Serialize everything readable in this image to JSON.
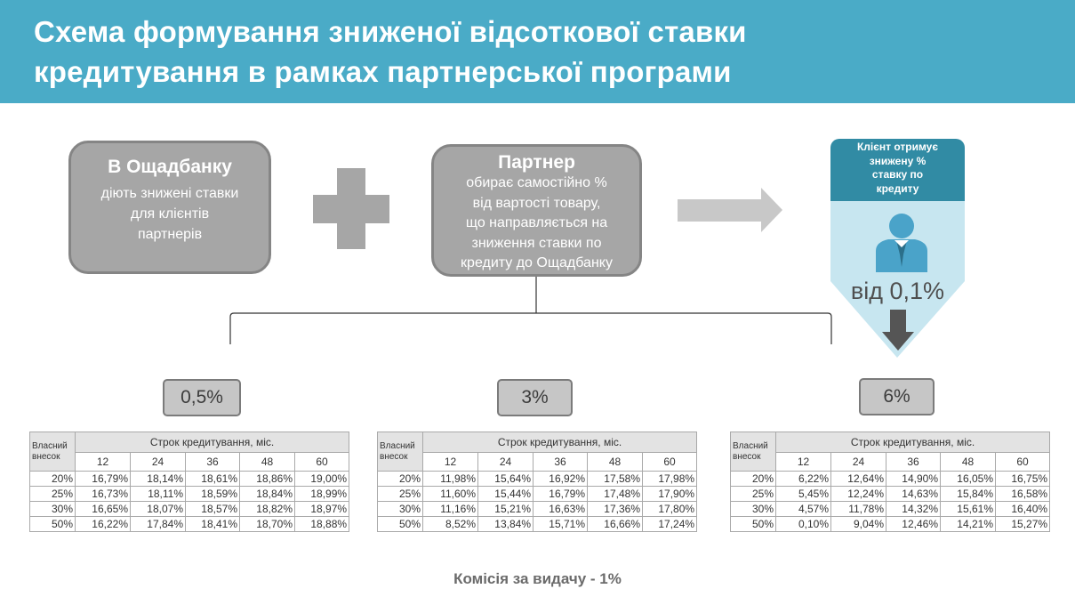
{
  "header": {
    "title_line1": "Схема формування зниженої відсоткової ставки",
    "title_line2": "кредитування в рамках партнерської програми"
  },
  "bank_box": {
    "title": "В Ощадбанку",
    "lines": [
      "діють знижені ставки",
      "для клієнтів",
      "партнерів"
    ]
  },
  "partner_box": {
    "title": "Партнер",
    "lines": [
      "обирає самостійно %",
      "від вартості товару,",
      "що направляється на",
      "зниження ставки по",
      "кредиту до Ощадбанку"
    ]
  },
  "client": {
    "lines": [
      "Клієнт отримує",
      "знижену %",
      "ставку по",
      "кредиту"
    ],
    "rate": "від 0,1%"
  },
  "options": [
    {
      "rate": "0,5%",
      "table": {
        "owner_label_1": "Власний",
        "owner_label_2": "внесок",
        "term_header": "Строк кредитування, міс.",
        "terms": [
          "12",
          "24",
          "36",
          "48",
          "60"
        ],
        "rows": [
          {
            "down": "20%",
            "values": [
              "16,79%",
              "18,14%",
              "18,61%",
              "18,86%",
              "19,00%"
            ]
          },
          {
            "down": "25%",
            "values": [
              "16,73%",
              "18,11%",
              "18,59%",
              "18,84%",
              "18,99%"
            ]
          },
          {
            "down": "30%",
            "values": [
              "16,65%",
              "18,07%",
              "18,57%",
              "18,82%",
              "18,97%"
            ]
          },
          {
            "down": "50%",
            "values": [
              "16,22%",
              "17,84%",
              "18,41%",
              "18,70%",
              "18,88%"
            ]
          }
        ]
      }
    },
    {
      "rate": "3%",
      "table": {
        "owner_label_1": "Власний",
        "owner_label_2": "внесок",
        "term_header": "Строк кредитування, міс.",
        "terms": [
          "12",
          "24",
          "36",
          "48",
          "60"
        ],
        "rows": [
          {
            "down": "20%",
            "values": [
              "11,98%",
              "15,64%",
              "16,92%",
              "17,58%",
              "17,98%"
            ]
          },
          {
            "down": "25%",
            "values": [
              "11,60%",
              "15,44%",
              "16,79%",
              "17,48%",
              "17,90%"
            ]
          },
          {
            "down": "30%",
            "values": [
              "11,16%",
              "15,21%",
              "16,63%",
              "17,36%",
              "17,80%"
            ]
          },
          {
            "down": "50%",
            "values": [
              "8,52%",
              "13,84%",
              "15,71%",
              "16,66%",
              "17,24%"
            ]
          }
        ]
      }
    },
    {
      "rate": "6%",
      "table": {
        "owner_label_1": "Власний",
        "owner_label_2": "внесок",
        "term_header": "Строк кредитування, міс.",
        "terms": [
          "12",
          "24",
          "36",
          "48",
          "60"
        ],
        "rows": [
          {
            "down": "20%",
            "values": [
              "6,22%",
              "12,64%",
              "14,90%",
              "16,05%",
              "16,75%"
            ]
          },
          {
            "down": "25%",
            "values": [
              "5,45%",
              "12,24%",
              "14,63%",
              "15,84%",
              "16,58%"
            ]
          },
          {
            "down": "30%",
            "values": [
              "4,57%",
              "11,78%",
              "14,32%",
              "15,61%",
              "16,40%"
            ]
          },
          {
            "down": "50%",
            "values": [
              "0,10%",
              "9,04%",
              "12,46%",
              "14,21%",
              "15,27%"
            ]
          }
        ]
      }
    }
  ],
  "footer": "Комісія за видачу - 1%",
  "colors": {
    "header_bg": "#4aabc7",
    "box_bg": "#a6a6a6",
    "client_dark": "#318ba4",
    "client_light": "#c7e6f0",
    "person": "#4aa3c9"
  }
}
